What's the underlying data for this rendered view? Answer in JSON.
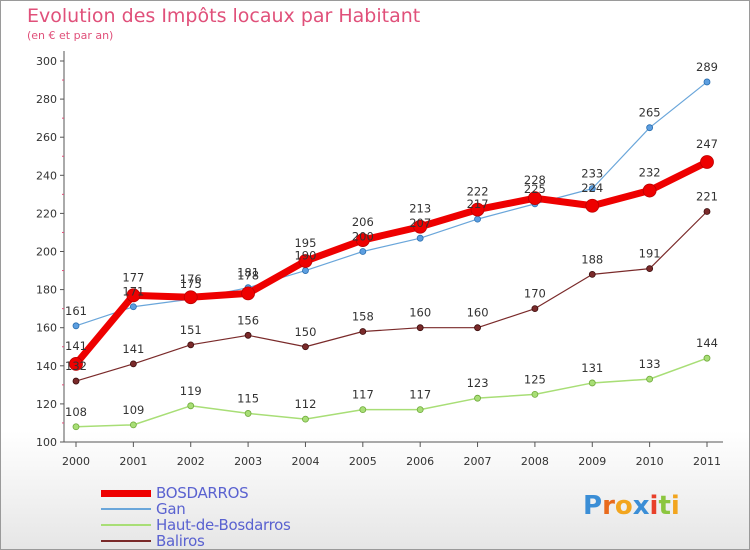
{
  "chart_data": {
    "type": "line",
    "title": "Evolution des Impôts locaux par Habitant",
    "subtitle": "(en € et par an)",
    "categories": [
      "2000",
      "2001",
      "2002",
      "2003",
      "2004",
      "2005",
      "2006",
      "2007",
      "2008",
      "2009",
      "2010",
      "2011"
    ],
    "ylim": [
      100,
      300
    ],
    "yticks": [
      100,
      120,
      140,
      160,
      180,
      200,
      220,
      240,
      260,
      280,
      300
    ],
    "grid": false,
    "legend_position": "bottom-left",
    "series": [
      {
        "name": "BOSDARROS",
        "color": "#ee0000",
        "values": [
          141,
          177,
          176,
          178,
          195,
          206,
          213,
          222,
          228,
          224,
          232,
          247
        ]
      },
      {
        "name": "Gan",
        "color": "#6aa6da",
        "values": [
          161,
          171,
          175,
          181,
          190,
          200,
          207,
          217,
          225,
          233,
          265,
          289
        ]
      },
      {
        "name": "Haut-de-Bosdarros",
        "color": "#a8de76",
        "values": [
          108,
          109,
          119,
          115,
          112,
          117,
          117,
          123,
          125,
          131,
          133,
          144
        ]
      },
      {
        "name": "Baliros",
        "color": "#7a2a2a",
        "values": [
          132,
          141,
          151,
          156,
          150,
          158,
          160,
          160,
          170,
          188,
          191,
          221
        ]
      }
    ]
  },
  "logo": {
    "text": "Proxiti",
    "letters": [
      "P",
      "r",
      "o",
      "x",
      "i",
      "t",
      "i"
    ],
    "colors": [
      "#3b8ed6",
      "#e86a1c",
      "#f2a51e",
      "#3b8ed6",
      "#e8402a",
      "#8cc63f",
      "#f2a51e"
    ]
  },
  "colors": {
    "title": "#e0507a",
    "legend_text": "#5a62d0"
  }
}
